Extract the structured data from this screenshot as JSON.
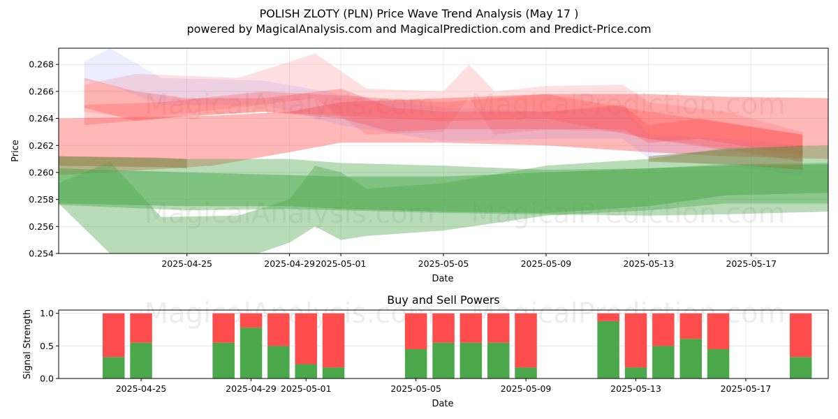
{
  "chart_data": [
    {
      "type": "area",
      "title": "POLISH ZLOTY (PLN) Price Wave Trend Analysis (May 17 )",
      "subtitle": "powered by MagicalAnalysis.com and MagicalPrediction.com and Predict-Price.com",
      "xlabel": "Date",
      "ylabel": "Price",
      "ylim": [
        0.254,
        0.2692
      ],
      "x_range": [
        "2025-04-20",
        "2025-05-20"
      ],
      "x_ticks": [
        "2025-04-25",
        "2025-04-29",
        "2025-05-01",
        "2025-05-05",
        "2025-05-09",
        "2025-05-13",
        "2025-05-17"
      ],
      "y_ticks": [
        0.254,
        0.256,
        0.258,
        0.26,
        0.262,
        0.264,
        0.266,
        0.268
      ],
      "grid": true,
      "watermarks": [
        "MagicalAnalysis.com",
        "MagicalPrediction.com"
      ],
      "colors": {
        "red": "#ff4d4d",
        "blue": "#6f6fff",
        "green": "#4aa84a",
        "olive": "#8a7a3a"
      },
      "bands": [
        {
          "color": "red",
          "opacity": 0.4,
          "x": [
            "2025-04-20",
            "2025-04-26",
            "2025-04-29",
            "2025-05-01",
            "2025-05-05",
            "2025-05-09",
            "2025-05-13",
            "2025-05-16",
            "2025-05-20"
          ],
          "upper": [
            0.264,
            0.2642,
            0.2645,
            0.2652,
            0.2655,
            0.2658,
            0.2658,
            0.2656,
            0.2655
          ],
          "lower": [
            0.2598,
            0.2605,
            0.2615,
            0.2622,
            0.2622,
            0.262,
            0.2615,
            0.2612,
            0.261
          ]
        },
        {
          "color": "red",
          "opacity": 0.18,
          "x": [
            "2025-04-21",
            "2025-04-23",
            "2025-04-27",
            "2025-04-30",
            "2025-05-02",
            "2025-05-05",
            "2025-05-06",
            "2025-05-07",
            "2025-05-09",
            "2025-05-12",
            "2025-05-13",
            "2025-05-16",
            "2025-05-19"
          ],
          "upper": [
            0.2665,
            0.2673,
            0.267,
            0.2688,
            0.2662,
            0.266,
            0.268,
            0.266,
            0.2664,
            0.2665,
            0.2652,
            0.2645,
            0.263
          ],
          "lower": [
            0.2645,
            0.264,
            0.2648,
            0.2655,
            0.2628,
            0.263,
            0.2655,
            0.2628,
            0.2632,
            0.263,
            0.2625,
            0.2618,
            0.2608
          ]
        },
        {
          "color": "blue",
          "opacity": 0.12,
          "x": [
            "2025-04-21",
            "2025-04-22",
            "2025-04-24",
            "2025-04-28",
            "2025-05-01",
            "2025-05-05",
            "2025-05-09",
            "2025-05-12",
            "2025-05-13",
            "2025-05-16",
            "2025-05-19"
          ],
          "upper": [
            0.2682,
            0.2692,
            0.267,
            0.2668,
            0.2658,
            0.2648,
            0.2645,
            0.2648,
            0.2628,
            0.2625,
            0.262
          ],
          "lower": [
            0.2668,
            0.2665,
            0.265,
            0.265,
            0.2635,
            0.2623,
            0.2625,
            0.2625,
            0.261,
            0.2605,
            0.2598
          ]
        },
        {
          "color": "red",
          "opacity": 0.3,
          "x": [
            "2025-04-21",
            "2025-04-23",
            "2025-04-25",
            "2025-04-28",
            "2025-05-01",
            "2025-05-03",
            "2025-05-05",
            "2025-05-09",
            "2025-05-12",
            "2025-05-13",
            "2025-05-15",
            "2025-05-19"
          ],
          "upper": [
            0.267,
            0.266,
            0.2655,
            0.2655,
            0.2662,
            0.2648,
            0.2645,
            0.2645,
            0.265,
            0.2635,
            0.264,
            0.2628
          ],
          "lower": [
            0.2648,
            0.2638,
            0.2642,
            0.2645,
            0.264,
            0.263,
            0.2632,
            0.2632,
            0.2632,
            0.2622,
            0.2625,
            0.2612
          ]
        },
        {
          "color": "red",
          "opacity": 0.28,
          "x": [
            "2025-04-21",
            "2025-04-24",
            "2025-04-28",
            "2025-05-01",
            "2025-05-05",
            "2025-05-09",
            "2025-05-13",
            "2025-05-19"
          ],
          "upper": [
            0.265,
            0.2652,
            0.266,
            0.2657,
            0.2652,
            0.2658,
            0.2645,
            0.2628
          ],
          "lower": [
            0.2635,
            0.264,
            0.2645,
            0.2642,
            0.2638,
            0.264,
            0.2625,
            0.2608
          ]
        },
        {
          "color": "green",
          "opacity": 0.4,
          "x": [
            "2025-04-20",
            "2025-04-25",
            "2025-04-29",
            "2025-05-01",
            "2025-05-05",
            "2025-05-09",
            "2025-05-13",
            "2025-05-16",
            "2025-05-20"
          ],
          "upper": [
            0.2612,
            0.261,
            0.261,
            0.2607,
            0.2605,
            0.2602,
            0.2603,
            0.2606,
            0.2607
          ],
          "lower": [
            0.2576,
            0.2572,
            0.2573,
            0.2572,
            0.257,
            0.2569,
            0.2568,
            0.2569,
            0.2571
          ]
        },
        {
          "color": "green",
          "opacity": 0.4,
          "x": [
            "2025-04-20",
            "2025-04-22",
            "2025-04-24",
            "2025-04-27",
            "2025-04-29",
            "2025-04-30",
            "2025-05-01",
            "2025-05-02",
            "2025-05-05",
            "2025-05-09",
            "2025-05-13",
            "2025-05-16",
            "2025-05-20"
          ],
          "upper": [
            0.2592,
            0.2608,
            0.2567,
            0.2568,
            0.258,
            0.2605,
            0.26,
            0.2588,
            0.2592,
            0.2605,
            0.261,
            0.2618,
            0.262
          ],
          "lower": [
            0.2577,
            0.254,
            0.253,
            0.2535,
            0.2548,
            0.256,
            0.255,
            0.2553,
            0.2557,
            0.2568,
            0.2572,
            0.2577,
            0.2577
          ]
        },
        {
          "color": "green",
          "opacity": 0.5,
          "x": [
            "2025-04-20",
            "2025-04-25",
            "2025-04-29",
            "2025-05-01",
            "2025-05-05",
            "2025-05-09",
            "2025-05-13",
            "2025-05-16",
            "2025-05-20"
          ],
          "upper": [
            0.2603,
            0.26,
            0.2598,
            0.2597,
            0.2597,
            0.26,
            0.2603,
            0.2605,
            0.2606
          ],
          "lower": [
            0.2577,
            0.2575,
            0.2575,
            0.2573,
            0.2571,
            0.257,
            0.2575,
            0.2583,
            0.2585
          ]
        },
        {
          "color": "olive",
          "opacity": 0.45,
          "x": [
            "2025-04-20",
            "2025-04-24",
            "2025-04-25"
          ],
          "upper": [
            0.2612,
            0.2611,
            0.261
          ],
          "lower": [
            0.2605,
            0.2604,
            0.2603
          ]
        },
        {
          "color": "olive",
          "opacity": 0.45,
          "x": [
            "2025-05-13",
            "2025-05-16",
            "2025-05-19"
          ],
          "upper": [
            0.2612,
            0.2617,
            0.262
          ],
          "lower": [
            0.2608,
            0.2606,
            0.2602
          ]
        }
      ]
    },
    {
      "type": "bar",
      "stacked": true,
      "title": "Buy and Sell Powers",
      "xlabel": "Date",
      "ylabel": "Signal Strength",
      "ylim": [
        0,
        1.05
      ],
      "x_range": [
        "2025-04-22",
        "2025-05-20"
      ],
      "x_ticks": [
        "2025-04-25",
        "2025-04-29",
        "2025-05-01",
        "2025-05-05",
        "2025-05-09",
        "2025-05-13",
        "2025-05-17"
      ],
      "y_ticks": [
        0.0,
        0.5,
        1.0
      ],
      "grid": true,
      "watermarks": [
        "MagicalAnalysis.com",
        "MagicalPrediction.com"
      ],
      "x": [
        "2025-04-24",
        "2025-04-25",
        "2025-04-28",
        "2025-04-29",
        "2025-04-30",
        "2025-05-01",
        "2025-05-02",
        "2025-05-05",
        "2025-05-06",
        "2025-05-07",
        "2025-05-08",
        "2025-05-09",
        "2025-05-12",
        "2025-05-13",
        "2025-05-14",
        "2025-05-15",
        "2025-05-16",
        "2025-05-19"
      ],
      "series": [
        {
          "color": "green",
          "values": [
            0.33,
            0.55,
            0.55,
            0.78,
            0.5,
            0.22,
            0.17,
            0.45,
            0.55,
            0.55,
            0.55,
            0.17,
            0.88,
            0.17,
            0.5,
            0.61,
            0.45,
            0.33
          ]
        },
        {
          "color": "red",
          "values": [
            0.67,
            0.45,
            0.45,
            0.22,
            0.5,
            0.78,
            0.83,
            0.55,
            0.45,
            0.45,
            0.45,
            0.83,
            0.12,
            0.83,
            0.5,
            0.39,
            0.55,
            0.67
          ]
        }
      ]
    }
  ]
}
